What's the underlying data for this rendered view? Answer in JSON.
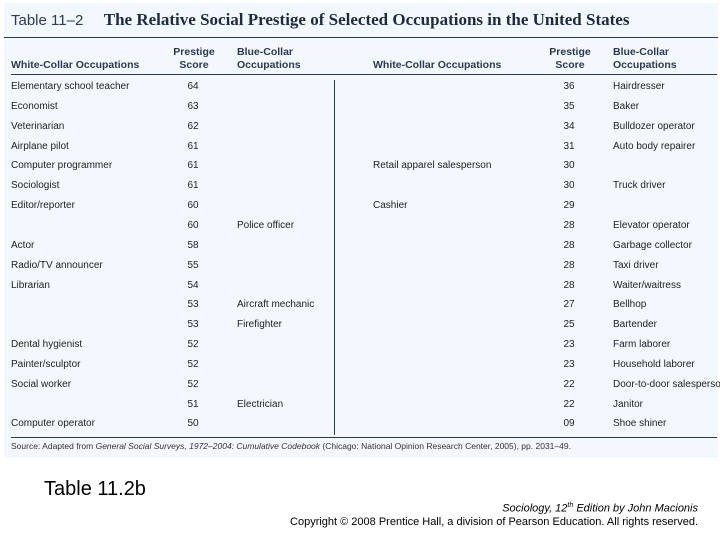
{
  "table": {
    "label": "Table 11–2",
    "title": "The Relative Social Prestige of Selected Occupations in the United States",
    "headers": {
      "white_collar": "White-Collar Occupations",
      "prestige_score": [
        "Prestige",
        "Score"
      ],
      "blue_collar": [
        "Blue-Collar",
        "Occupations"
      ]
    },
    "left_rows": [
      {
        "white": "Elementary school teacher",
        "score": "64",
        "blue": ""
      },
      {
        "white": "Economist",
        "score": "63",
        "blue": ""
      },
      {
        "white": "Veterinarian",
        "score": "62",
        "blue": ""
      },
      {
        "white": "Airplane pilot",
        "score": "61",
        "blue": ""
      },
      {
        "white": "Computer programmer",
        "score": "61",
        "blue": ""
      },
      {
        "white": "Sociologist",
        "score": "61",
        "blue": ""
      },
      {
        "white": "Editor/reporter",
        "score": "60",
        "blue": ""
      },
      {
        "white": "",
        "score": "60",
        "blue": "Police officer"
      },
      {
        "white": "Actor",
        "score": "58",
        "blue": ""
      },
      {
        "white": "Radio/TV announcer",
        "score": "55",
        "blue": ""
      },
      {
        "white": "Librarian",
        "score": "54",
        "blue": ""
      },
      {
        "white": "",
        "score": "53",
        "blue": "Aircraft mechanic"
      },
      {
        "white": "",
        "score": "53",
        "blue": "Firefighter"
      },
      {
        "white": "Dental hygienist",
        "score": "52",
        "blue": ""
      },
      {
        "white": "Painter/sculptor",
        "score": "52",
        "blue": ""
      },
      {
        "white": "Social worker",
        "score": "52",
        "blue": ""
      },
      {
        "white": "",
        "score": "51",
        "blue": "Electrician"
      },
      {
        "white": "Computer operator",
        "score": "50",
        "blue": ""
      }
    ],
    "right_rows": [
      {
        "white": "",
        "score": "36",
        "blue": "Hairdresser"
      },
      {
        "white": "",
        "score": "35",
        "blue": "Baker"
      },
      {
        "white": "",
        "score": "34",
        "blue": "Bulldozer operator"
      },
      {
        "white": "",
        "score": "31",
        "blue": "Auto body repairer"
      },
      {
        "white": "Retail apparel salesperson",
        "score": "30",
        "blue": ""
      },
      {
        "white": "",
        "score": "30",
        "blue": "Truck driver"
      },
      {
        "white": "Cashier",
        "score": "29",
        "blue": ""
      },
      {
        "white": "",
        "score": "28",
        "blue": "Elevator operator"
      },
      {
        "white": "",
        "score": "28",
        "blue": "Garbage collector"
      },
      {
        "white": "",
        "score": "28",
        "blue": "Taxi driver"
      },
      {
        "white": "",
        "score": "28",
        "blue": "Waiter/waitress"
      },
      {
        "white": "",
        "score": "27",
        "blue": "Bellhop"
      },
      {
        "white": "",
        "score": "25",
        "blue": "Bartender"
      },
      {
        "white": "",
        "score": "23",
        "blue": "Farm laborer"
      },
      {
        "white": "",
        "score": "23",
        "blue": "Household laborer"
      },
      {
        "white": "",
        "score": "22",
        "blue": "Door-to-door salesperson"
      },
      {
        "white": "",
        "score": "22",
        "blue": "Janitor"
      },
      {
        "white": "",
        "score": "09",
        "blue": "Shoe shiner"
      }
    ],
    "source": {
      "prefix": "Source: Adapted from ",
      "italic": "General Social Surveys, 1972–2004: Cumulative Codebook",
      "suffix": " (Chicago: National Opinion Research Center, 2005), pp. 2031–49."
    }
  },
  "caption": "Table 11.2b",
  "credit": {
    "book_before": "Sociology, 12",
    "book_sup": "th",
    "book_after": " Edition by John Macionis",
    "copyright": "Copyright © 2008 Prentice Hall, a division of Pearson Education. All rights reserved."
  }
}
